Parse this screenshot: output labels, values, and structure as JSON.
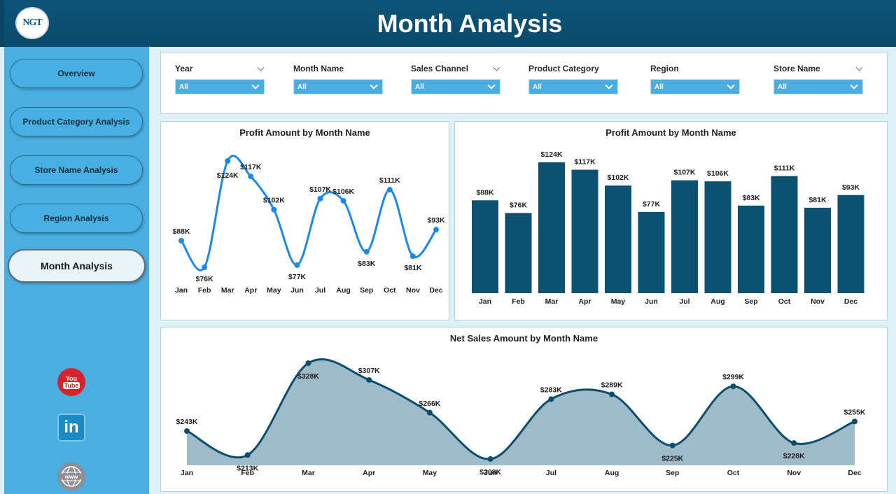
{
  "header": {
    "title": "Month Analysis",
    "logo_text": "NGT"
  },
  "sidebar": {
    "items": [
      {
        "label": "Overview"
      },
      {
        "label": "Product Category Analysis"
      },
      {
        "label": "Store Name Analysis"
      },
      {
        "label": "Region Analysis"
      },
      {
        "label": "Month Analysis",
        "active": true
      }
    ],
    "social": {
      "youtube_top": "You",
      "youtube_bottom": "Tube",
      "linkedin": "in",
      "web": "www"
    }
  },
  "filters": [
    {
      "label": "Year",
      "value": "All"
    },
    {
      "label": "Month Name",
      "value": "All"
    },
    {
      "label": "Sales Channel",
      "value": "All"
    },
    {
      "label": "Product Category",
      "value": "All"
    },
    {
      "label": "Region",
      "value": "All"
    },
    {
      "label": "Store Name",
      "value": "All"
    }
  ],
  "colors": {
    "line": "#1e88e5",
    "bar": "#0b5272",
    "area_line": "#0b4d6e",
    "area_fill": "#9fbbc9",
    "sidebar": "#4aaee0"
  },
  "chart_data": [
    {
      "type": "line",
      "title": "Profit Amount by Month Name",
      "categories": [
        "Jan",
        "Feb",
        "Mar",
        "Apr",
        "May",
        "Jun",
        "Jul",
        "Aug",
        "Sep",
        "Oct",
        "Nov",
        "Dec"
      ],
      "values": [
        88,
        76,
        124,
        117,
        102,
        77,
        107,
        106,
        83,
        111,
        81,
        93
      ],
      "labels": [
        "$88K",
        "$76K",
        "$124K",
        "$117K",
        "$102K",
        "$77K",
        "$107K",
        "$106K",
        "$83K",
        "$111K",
        "$81K",
        "$93K"
      ]
    },
    {
      "type": "bar",
      "title": "Profit Amount by Month Name",
      "categories": [
        "Jan",
        "Feb",
        "Mar",
        "Apr",
        "May",
        "Jun",
        "Jul",
        "Aug",
        "Sep",
        "Oct",
        "Nov",
        "Dec"
      ],
      "values": [
        88,
        76,
        124,
        117,
        102,
        77,
        107,
        106,
        83,
        111,
        81,
        93
      ],
      "labels": [
        "$88K",
        "$76K",
        "$124K",
        "$117K",
        "$102K",
        "$77K",
        "$107K",
        "$106K",
        "$83K",
        "$111K",
        "$81K",
        "$93K"
      ]
    },
    {
      "type": "area",
      "title": "Net Sales Amount by Month Name",
      "categories": [
        "Jan",
        "Feb",
        "Mar",
        "Apr",
        "May",
        "Jun",
        "Jul",
        "Aug",
        "Sep",
        "Oct",
        "Nov",
        "Dec"
      ],
      "values": [
        243,
        213,
        328,
        307,
        266,
        208,
        283,
        289,
        225,
        299,
        228,
        255
      ],
      "labels": [
        "$243K",
        "$213K",
        "$328K",
        "$307K",
        "$266K",
        "$208K",
        "$283K",
        "$289K",
        "$225K",
        "$299K",
        "$228K",
        "$255K"
      ]
    }
  ]
}
